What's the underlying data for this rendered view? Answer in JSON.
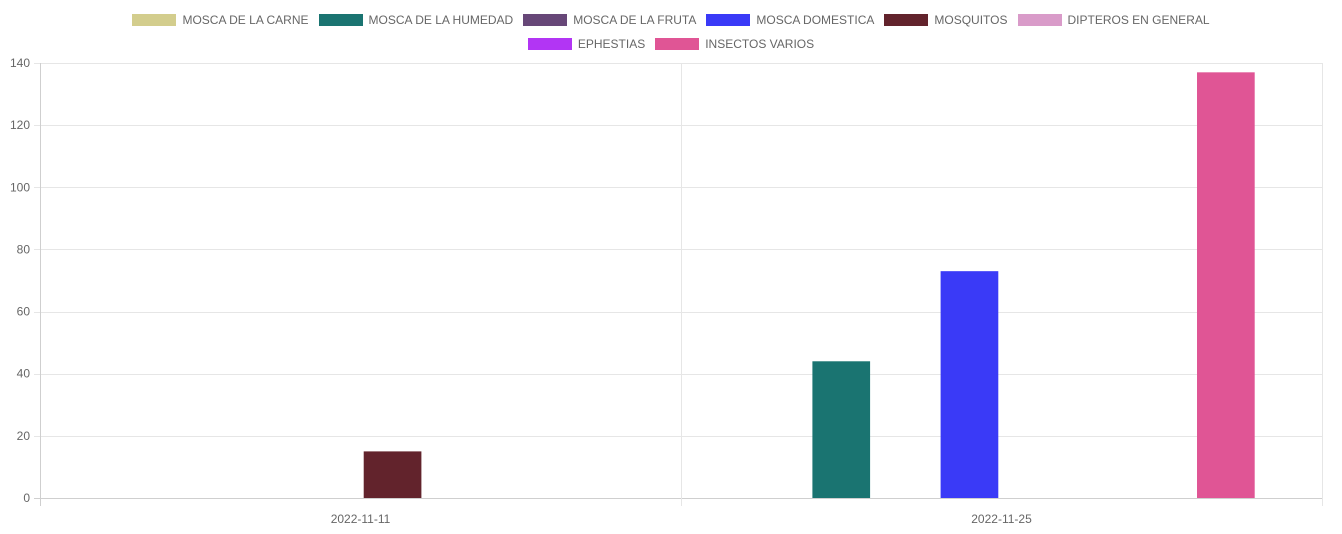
{
  "chart_data": {
    "type": "bar",
    "categories": [
      "2022-11-11",
      "2022-11-25"
    ],
    "series": [
      {
        "name": "MOSCA DE LA CARNE",
        "color": "#d3cd8d",
        "values": [
          0,
          0
        ]
      },
      {
        "name": "MOSCA DE LA HUMEDAD",
        "color": "#1a7471",
        "values": [
          0,
          44
        ]
      },
      {
        "name": "MOSCA DE LA FRUTA",
        "color": "#674778",
        "values": [
          0,
          0
        ]
      },
      {
        "name": "MOSCA DOMESTICA",
        "color": "#3a3af7",
        "values": [
          0,
          73
        ]
      },
      {
        "name": "MOSQUITOS",
        "color": "#62232c",
        "values": [
          15,
          0
        ]
      },
      {
        "name": "DIPTEROS EN GENERAL",
        "color": "#d99bc9",
        "values": [
          0,
          0
        ]
      },
      {
        "name": "EPHESTIAS",
        "color": "#b235f4",
        "values": [
          0,
          0
        ]
      },
      {
        "name": "INSECTOS VARIOS",
        "color": "#e05595",
        "values": [
          0,
          137
        ]
      }
    ],
    "ylim": [
      0,
      140
    ],
    "yticks": [
      0,
      20,
      40,
      60,
      80,
      100,
      120,
      140
    ],
    "grid": true,
    "legend_position": "top"
  }
}
